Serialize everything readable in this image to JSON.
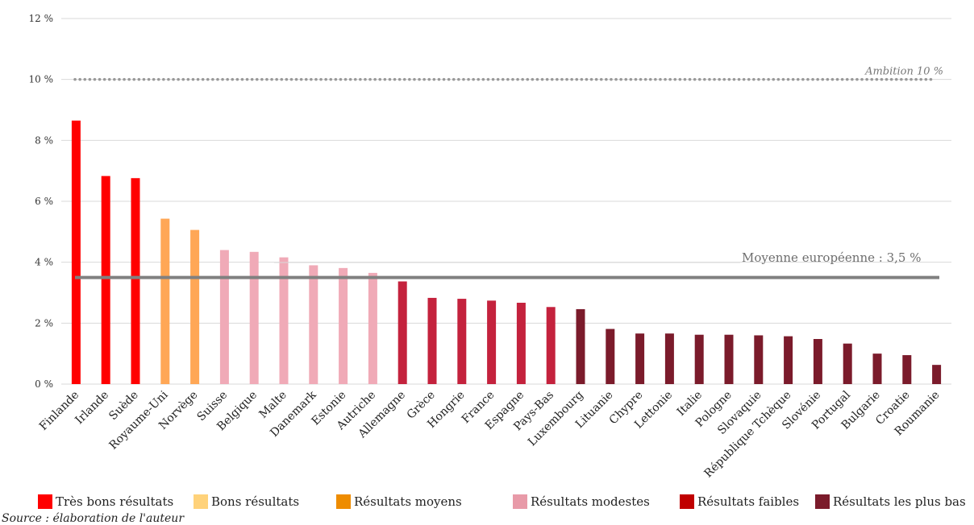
{
  "chart_data": {
    "type": "bar",
    "ylim": [
      0,
      12
    ],
    "ytick_labels": [
      "0 %",
      "2 %",
      "4 %",
      "6 %",
      "8 %",
      "10 %",
      "12 %"
    ],
    "ytick_values": [
      0,
      2,
      4,
      6,
      8,
      10,
      12
    ],
    "grid": true,
    "categories": [
      "Finlande",
      "Irlande",
      "Suède",
      "Royaume-Uni",
      "Norvège",
      "Suisse",
      "Belgique",
      "Malte",
      "Danemark",
      "Estonie",
      "Autriche",
      "Allemagne",
      "Grèce",
      "Hongrie",
      "France",
      "Espagne",
      "Pays-Bas",
      "Luxembourg",
      "Lituanie",
      "Chypre",
      "Lettonie",
      "Italie",
      "Pologne",
      "Slovaquie",
      "République Tchèque",
      "Slovénie",
      "Portugal",
      "Bulgarie",
      "Croatie",
      "Roumanie"
    ],
    "values": [
      8.65,
      6.83,
      6.76,
      5.43,
      5.06,
      4.4,
      4.34,
      4.16,
      3.9,
      3.81,
      3.65,
      3.37,
      2.83,
      2.8,
      2.74,
      2.67,
      2.53,
      2.46,
      1.81,
      1.66,
      1.66,
      1.62,
      1.62,
      1.6,
      1.57,
      1.48,
      1.33,
      1.0,
      0.95,
      0.63
    ],
    "groups": [
      0,
      0,
      0,
      2,
      2,
      3,
      3,
      3,
      3,
      3,
      3,
      4,
      4,
      4,
      4,
      4,
      4,
      5,
      5,
      5,
      5,
      5,
      5,
      5,
      5,
      5,
      5,
      5,
      5,
      5
    ],
    "bar_colors": [
      "#ff0000",
      "#ff9f57",
      "#ffa756",
      "#f0aab7",
      "#c4223d",
      "#7b1b2b"
    ],
    "reference_lines": [
      {
        "label": "Ambition 10 %",
        "value": 10,
        "style": "dotted",
        "color": "#999999"
      },
      {
        "label": "Moyenne européenne : 3,5 %",
        "value": 3.5,
        "style": "solid",
        "color": "#808080"
      }
    ],
    "legend": [
      {
        "label": "Très bons résultats",
        "color": "#ff0000"
      },
      {
        "label": "Bons résultats",
        "color": "#ffd27a"
      },
      {
        "label": "Résultats moyens",
        "color": "#ee8c00"
      },
      {
        "label": "Résultats modestes",
        "color": "#e89aa8"
      },
      {
        "label": "Résultats faibles",
        "color": "#c00000"
      },
      {
        "label": "Résultats les plus bas",
        "color": "#7b1b2b"
      }
    ],
    "legend_position": "bottom"
  },
  "source": "Source : élaboration de l'auteur"
}
